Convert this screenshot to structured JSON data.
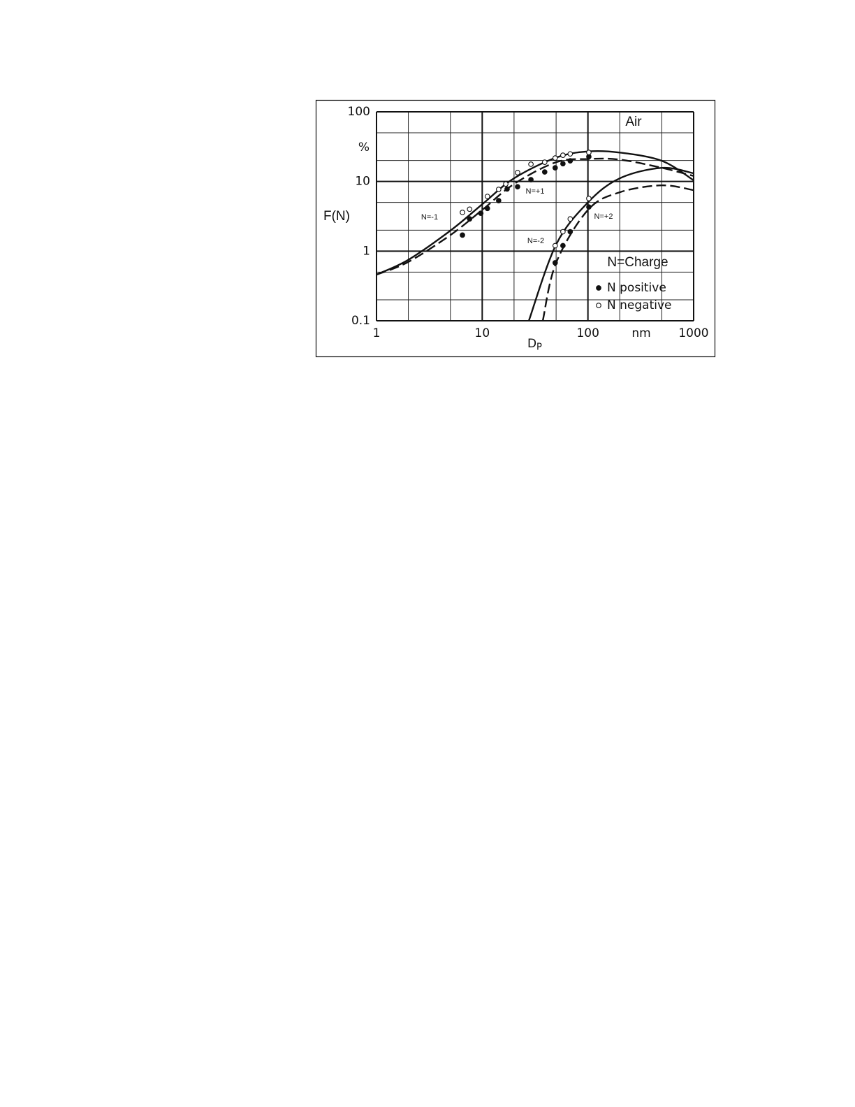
{
  "chart_data": {
    "type": "scatter",
    "y_label": "F(N)",
    "y_unit": "%",
    "x_label": "D",
    "x_label_sub": "P",
    "x_unit": "nm",
    "annotations": [
      "Air",
      "N=-1",
      "N=+1",
      "N=-2",
      "N=+2",
      "N=Charge"
    ],
    "xlim": [
      1,
      1000
    ],
    "ylim": [
      0.1,
      100
    ],
    "xticks": [
      1,
      10,
      100,
      1000
    ],
    "yticks": [
      0.1,
      1,
      10,
      100
    ],
    "x_log": true,
    "y_log": true,
    "grid": true,
    "x_minor_grid": [
      2,
      5,
      20,
      50,
      200,
      500
    ],
    "y_minor_grid": [
      0.2,
      0.5,
      2,
      5,
      20,
      50
    ],
    "color": "#111111",
    "series": [
      {
        "style": "solid-line",
        "x": [
          1,
          2,
          5,
          10,
          20,
          50,
          100,
          200,
          500,
          1000
        ],
        "y": [
          0.46,
          0.75,
          1.97,
          4.7,
          11.1,
          22,
          27,
          26,
          19.8,
          10.4
        ]
      },
      {
        "style": "dashed-line",
        "x": [
          1,
          2,
          5,
          10,
          20,
          50,
          100,
          200,
          500,
          1000
        ],
        "y": [
          0.46,
          0.7,
          1.7,
          3.9,
          9.2,
          18.9,
          21,
          20.6,
          15.7,
          12
        ]
      },
      {
        "style": "solid-line",
        "x": [
          27.6,
          50,
          100,
          200,
          500,
          1000
        ],
        "y": [
          0.1,
          1.24,
          5.0,
          11.1,
          15.7,
          13.1
        ]
      },
      {
        "style": "dashed-line",
        "x": [
          37.4,
          50,
          100,
          200,
          500,
          1000
        ],
        "y": [
          0.1,
          0.68,
          3.9,
          7.0,
          8.8,
          7.5
        ]
      },
      {
        "name": "N positive",
        "style": "filled-marker",
        "x": [
          6.5,
          7.6,
          9.7,
          11.2,
          14.3,
          17.2,
          21.6,
          28.9,
          39,
          49,
          58,
          68,
          102,
          49,
          58,
          68,
          102
        ],
        "y": [
          1.7,
          2.9,
          3.5,
          4.1,
          5.3,
          7.8,
          8.4,
          10.6,
          13.7,
          15.7,
          18,
          19.8,
          22.7,
          0.68,
          1.2,
          1.9,
          4.3
        ]
      },
      {
        "name": "N negative",
        "style": "open-marker",
        "x": [
          6.5,
          7.6,
          11.2,
          14.3,
          16.7,
          21.6,
          28.9,
          39,
          49,
          58,
          68,
          102,
          49,
          58,
          68,
          102
        ],
        "y": [
          3.6,
          4.0,
          6.1,
          7.7,
          9.2,
          13.4,
          17.7,
          18.9,
          21.7,
          23.8,
          24.9,
          26.1,
          1.2,
          1.9,
          2.9,
          5.7
        ]
      }
    ]
  }
}
